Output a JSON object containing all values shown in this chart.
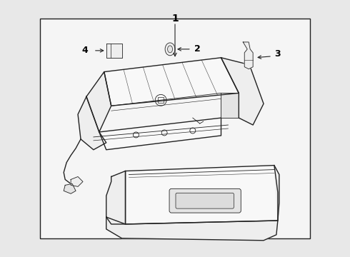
{
  "bg_color": "#e8e8e8",
  "box_bg": "#f0f0f0",
  "line_color": "#222222",
  "label_color": "#000000",
  "part_fill": "#f8f8f8",
  "part_fill2": "#eeeeee",
  "part_fill3": "#e4e4e4"
}
